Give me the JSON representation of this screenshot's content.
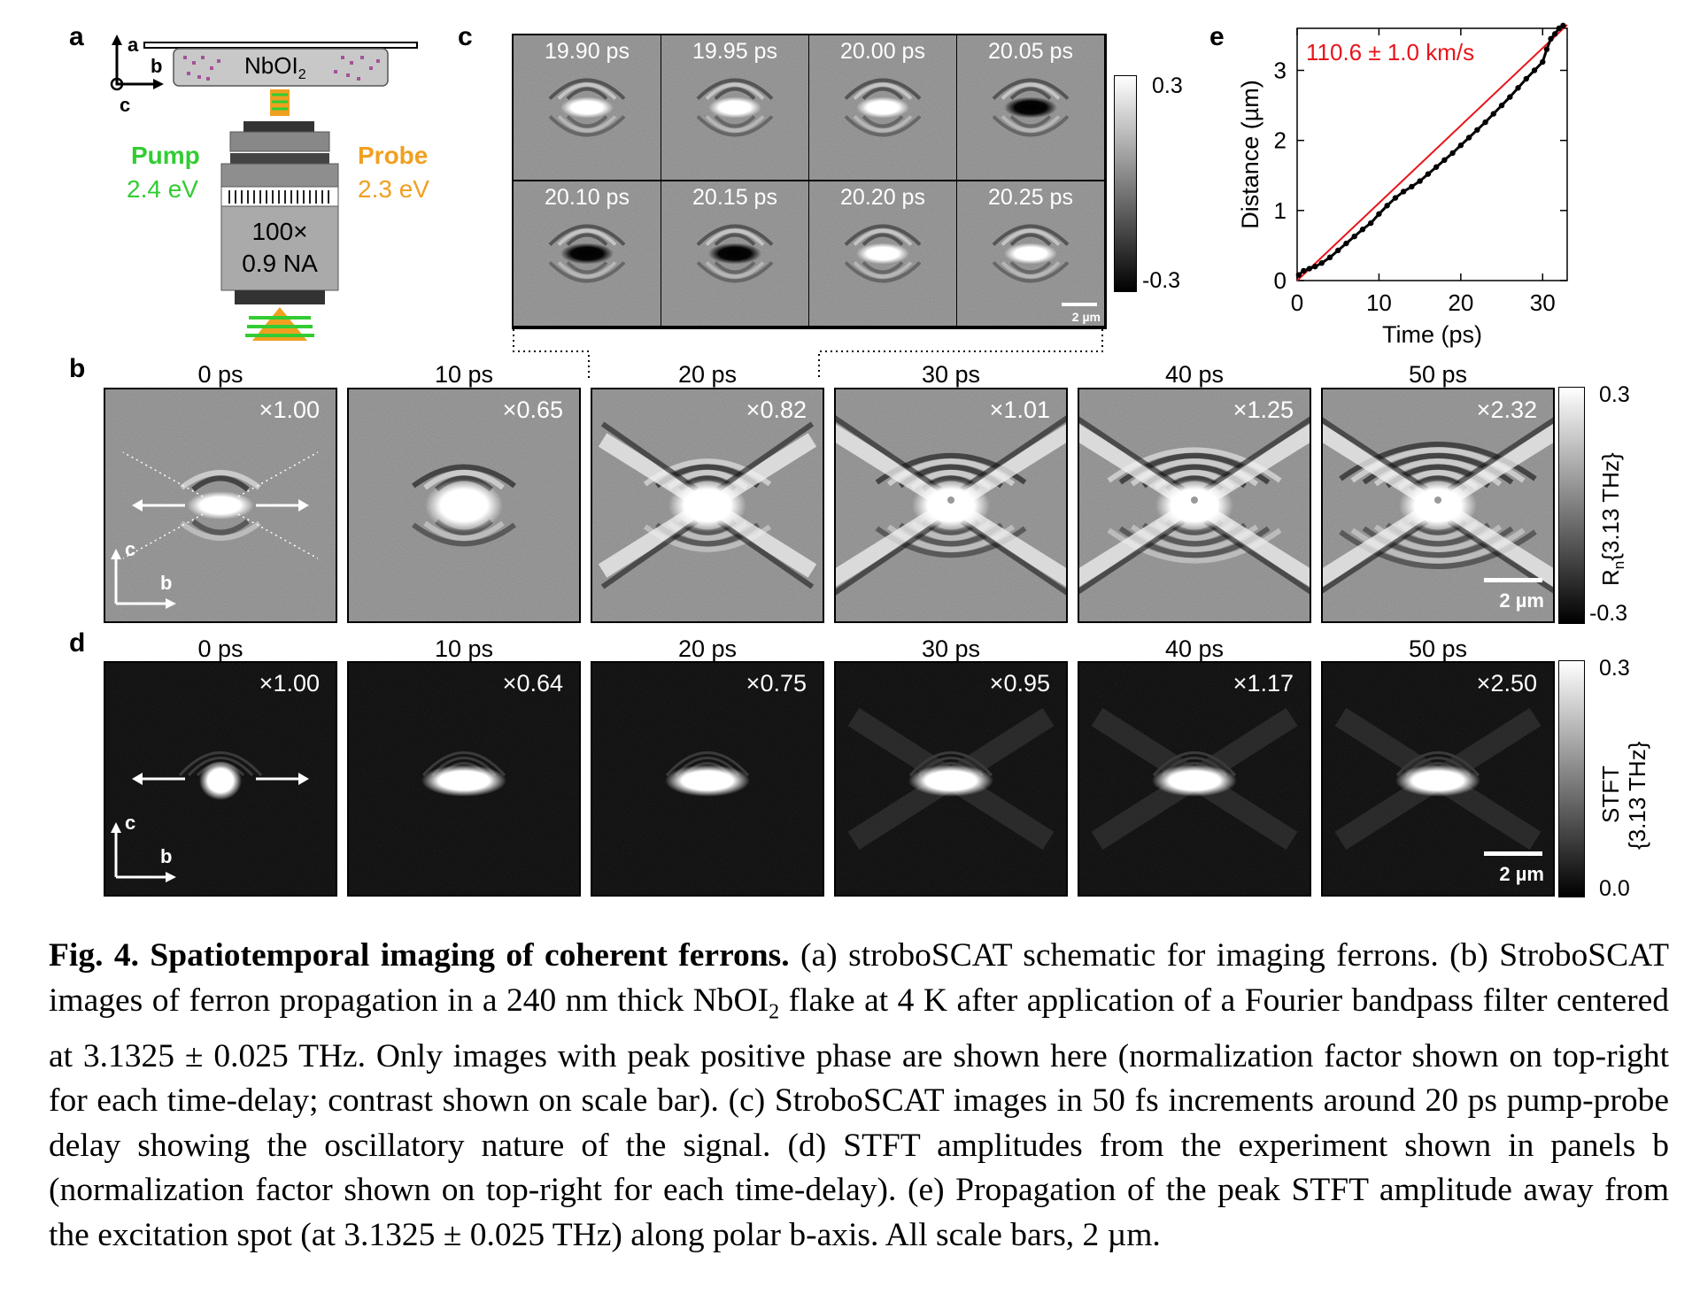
{
  "panel_a": {
    "label": "a",
    "axis_a": "a",
    "axis_b": "b",
    "axis_c": "c",
    "sample": "NbOI",
    "sample_sub": "2",
    "pump_title": "Pump",
    "pump_energy": "2.4 eV",
    "probe_title": "Probe",
    "probe_energy": "2.3 eV",
    "objective_mag": "100×",
    "objective_na": "0.9 NA",
    "pump_color": "#33cc33",
    "probe_color": "#f0a020"
  },
  "panel_b": {
    "label": "b",
    "tiles": [
      {
        "time": "0 ps",
        "factor": "×1.00"
      },
      {
        "time": "10 ps",
        "factor": "×0.65"
      },
      {
        "time": "20 ps",
        "factor": "×0.82"
      },
      {
        "time": "30 ps",
        "factor": "×1.01"
      },
      {
        "time": "40 ps",
        "factor": "×1.25"
      },
      {
        "time": "50 ps",
        "factor": "×2.32"
      }
    ],
    "axis_c": "c",
    "axis_b": "b",
    "scale_bar": "2 µm",
    "colorbar_max": "0.3",
    "colorbar_min": "-0.3",
    "colorbar_label_prefix": "R",
    "colorbar_label_sub": "n",
    "colorbar_label_suffix": "{3.13 THz}"
  },
  "panel_c": {
    "label": "c",
    "tiles": [
      "19.90 ps",
      "19.95 ps",
      "20.00 ps",
      "20.05 ps",
      "20.10 ps",
      "20.15 ps",
      "20.20 ps",
      "20.25 ps"
    ],
    "scale_bar": "2 µm",
    "colorbar_max": "0.3",
    "colorbar_min": "-0.3"
  },
  "panel_d": {
    "label": "d",
    "tiles": [
      {
        "time": "0 ps",
        "factor": "×1.00"
      },
      {
        "time": "10 ps",
        "factor": "×0.64"
      },
      {
        "time": "20 ps",
        "factor": "×0.75"
      },
      {
        "time": "30 ps",
        "factor": "×0.95"
      },
      {
        "time": "40 ps",
        "factor": "×1.17"
      },
      {
        "time": "50 ps",
        "factor": "×2.50"
      }
    ],
    "axis_c": "c",
    "axis_b": "b",
    "scale_bar": "2 µm",
    "colorbar_max": "0.3",
    "colorbar_min": "0.0",
    "colorbar_label_1": "STFT",
    "colorbar_label_2": "{3.13 THz}"
  },
  "panel_e": {
    "label": "e",
    "annotation": "110.6 ± 1.0 km/s",
    "annotation_color": "#e8141c"
  },
  "chart_data": {
    "type": "scatter",
    "xlabel": "Time (ps)",
    "ylabel": "Distance (µm)",
    "xlim": [
      0,
      33
    ],
    "ylim": [
      0,
      3.6
    ],
    "xticks": [
      0,
      10,
      20,
      30
    ],
    "yticks": [
      0,
      1,
      2,
      3
    ],
    "series": [
      {
        "x": [
          0.2,
          0.8,
          1.5,
          2.2,
          3,
          4,
          5,
          6,
          7,
          8,
          9,
          10,
          11,
          12,
          13,
          14,
          15,
          16,
          17,
          18,
          19,
          20,
          21,
          22,
          23,
          24,
          25,
          26,
          27,
          28,
          29,
          30,
          30.5,
          31,
          31.5,
          32,
          32.5
        ],
        "y": [
          0.08,
          0.14,
          0.17,
          0.2,
          0.25,
          0.33,
          0.43,
          0.53,
          0.63,
          0.73,
          0.82,
          0.95,
          1.07,
          1.18,
          1.27,
          1.34,
          1.42,
          1.52,
          1.62,
          1.72,
          1.82,
          1.93,
          2.04,
          2.15,
          2.26,
          2.38,
          2.5,
          2.62,
          2.75,
          2.88,
          3.0,
          3.12,
          3.3,
          3.45,
          3.52,
          3.6,
          3.64
        ],
        "color": "#000000"
      }
    ],
    "fit": {
      "x": [
        0,
        33
      ],
      "y": [
        0,
        3.65
      ],
      "color": "#e8141c"
    },
    "grid": false
  },
  "caption": {
    "title": "Fig. 4. Spatiotemporal imaging of coherent ferrons.",
    "text_1": " (a) stroboSCAT schematic for imaging ferrons. (b) StroboSCAT images of ferron propagation in a 240 nm thick NbOI",
    "text_sub": "2",
    "text_2": " flake at 4 K after application of a Fourier bandpass filter centered at 3.1325 ± 0.025 THz. Only images with peak positive phase are shown here (normalization factor shown on top-right for each time-delay; contrast shown on scale bar). (c) StroboSCAT images in 50 fs increments around 20 ps pump-probe delay showing the oscillatory nature of the signal. (d) STFT amplitudes from the experiment shown in panels b (normalization factor shown on top-right for each time-delay). (e) Propagation of the peak STFT amplitude away from the excitation spot (at 3.1325 ± 0.025 THz) along polar b-axis. All scale bars, 2 µm."
  }
}
